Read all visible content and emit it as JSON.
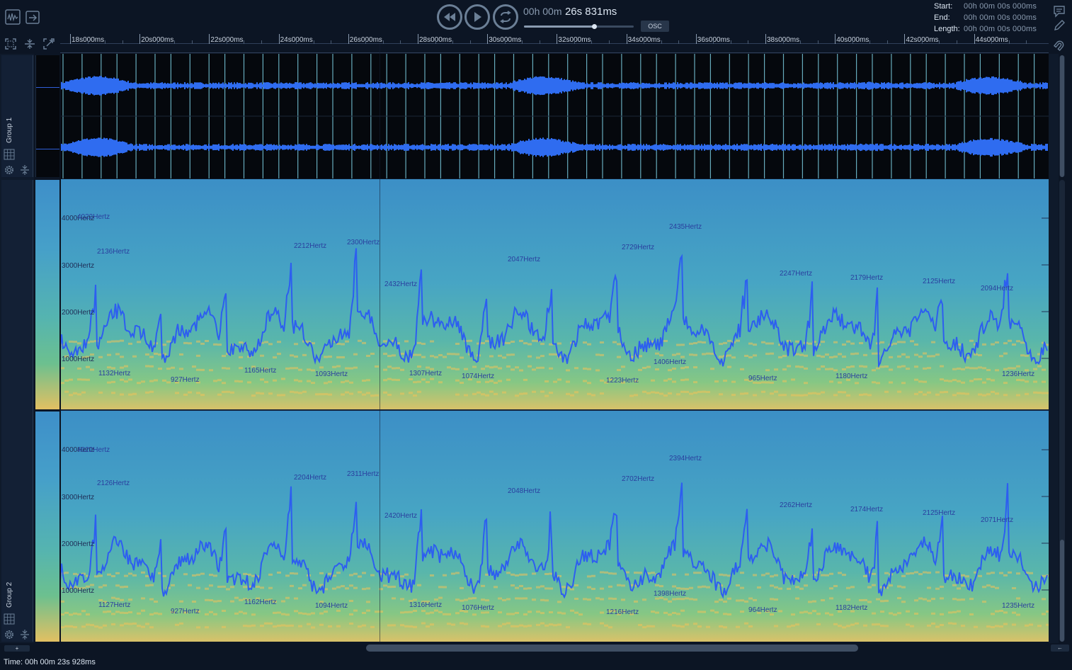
{
  "toolbar": {
    "left_icons": [
      "waveform-view-icon",
      "export-icon"
    ],
    "fit_icons": [
      "fit-view-icon",
      "collapse-icon",
      "zoom-selection-icon"
    ],
    "transport": [
      "rewind-icon",
      "play-icon",
      "loop-icon"
    ],
    "time_hm": "00h 00m",
    "time_sms": "26s 831ms",
    "osc_label": "OSC",
    "right_icons": [
      "comment-icon",
      "pencil-icon",
      "magnet-icon"
    ]
  },
  "time_range": {
    "start_label": "Start:",
    "start_value": "00h 00m 00s 000ms",
    "end_label": "End:",
    "end_value": "00h 00m 00s 000ms",
    "length_label": "Length:",
    "length_value": "00h 00m 00s 000ms"
  },
  "ruler": {
    "ticks": [
      "18s000ms",
      "20s000ms",
      "22s000ms",
      "24s000ms",
      "26s000ms",
      "28s000ms",
      "30s000ms",
      "32s000ms",
      "34s000ms",
      "36s000ms",
      "38s000ms",
      "40s000ms",
      "42s000ms",
      "44s000ms"
    ]
  },
  "groups": [
    {
      "label": "Group 1"
    },
    {
      "label": "Group 2"
    }
  ],
  "spectrogram": {
    "axis_labels": [
      "4000Hertz",
      "3000Hertz",
      "2000Hertz",
      "1000Hertz"
    ],
    "axis_overlap_label": "4022Hertz",
    "track1_peaks": [
      "2136Hertz",
      "2212Hertz",
      "2300Hertz",
      "2432Hertz",
      "2047Hertz",
      "2729Hertz",
      "2435Hertz",
      "2247Hertz",
      "2179Hertz",
      "2125Hertz",
      "2094Hertz"
    ],
    "track1_troughs": [
      "1132Hertz",
      "927Hertz",
      "1165Hertz",
      "1093Hertz",
      "1307Hertz",
      "1074Hertz",
      "1223Hertz",
      "1406Hertz",
      "965Hertz",
      "1180Hertz",
      "1236Hertz"
    ],
    "track2_peaks": [
      "2126Hertz",
      "2204Hertz",
      "2311Hertz",
      "2420Hertz",
      "2048Hertz",
      "2702Hertz",
      "2394Hertz",
      "2262Hertz",
      "2174Hertz",
      "2125Hertz",
      "2071Hertz"
    ],
    "track2_troughs": [
      "1127Hertz",
      "927Hertz",
      "1162Hertz",
      "1094Hertz",
      "1316Hertz",
      "1076Hertz",
      "1216Hertz",
      "1398Hertz",
      "964Hertz",
      "1182Hertz",
      "1235Hertz"
    ]
  },
  "status": {
    "time_text": "Time: 00h 00m 23s 928ms"
  }
}
